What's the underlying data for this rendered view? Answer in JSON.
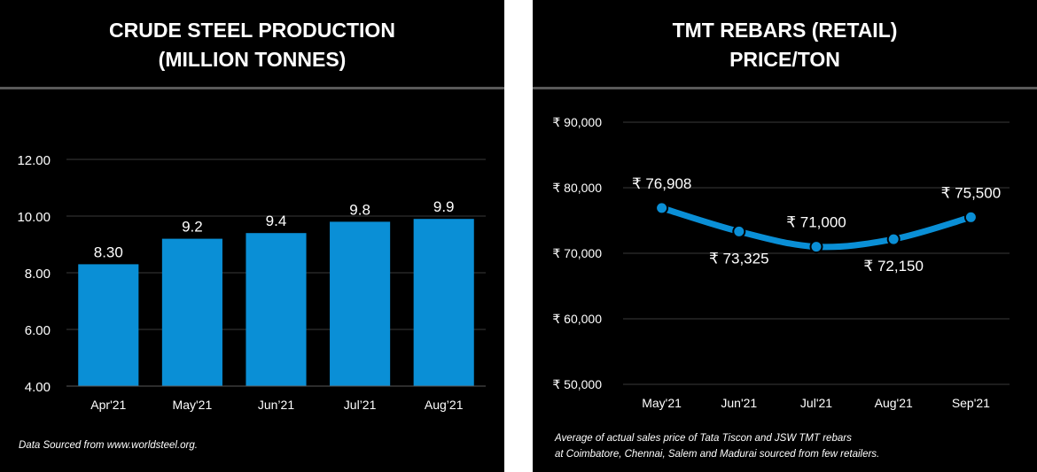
{
  "left_panel": {
    "title_line1": "CRUDE STEEL PRODUCTION",
    "title_line2": "(MILLION TONNES)",
    "footnote": "Data Sourced from www.worldsteel.org."
  },
  "right_panel": {
    "title_line1": "TMT REBARS (RETAIL)",
    "title_line2": "PRICE/TON",
    "footnote_line1": "Average of actual sales price of Tata Tiscon and JSW TMT rebars",
    "footnote_line2": "at Coimbatore, Chennai, Salem and Madurai sourced from few retailers."
  },
  "colors": {
    "accent": "#0a8fd6",
    "background": "#000000",
    "grid": "#3a3a3a",
    "text": "#ffffff"
  },
  "chart_data": [
    {
      "type": "bar",
      "categories": [
        "Apr'21",
        "May'21",
        "Jun’21",
        "Jul’21",
        "Aug’21"
      ],
      "values": [
        8.3,
        9.2,
        9.4,
        9.8,
        9.9
      ],
      "data_labels": [
        "8.30",
        "9.2",
        "9.4",
        "9.8",
        "9.9"
      ],
      "ylim": [
        4,
        12
      ],
      "yticks": [
        4,
        6,
        8,
        10,
        12
      ],
      "ytick_labels": [
        "4.00",
        "6.00",
        "8.00",
        "10.00",
        "12.00"
      ],
      "grid": true,
      "legend": "none"
    },
    {
      "type": "line",
      "categories": [
        "May'21",
        "Jun'21",
        "Jul'21",
        "Aug'21",
        "Sep'21"
      ],
      "values": [
        76908,
        73325,
        71000,
        72150,
        75500
      ],
      "data_labels": [
        "₹ 76,908",
        "₹ 73,325",
        "₹ 71,000",
        "₹ 72,150",
        "₹ 75,500"
      ],
      "label_positions": [
        "above",
        "below",
        "above",
        "below",
        "above"
      ],
      "ylim": [
        50000,
        90000
      ],
      "yticks": [
        50000,
        60000,
        70000,
        80000,
        90000
      ],
      "ytick_labels": [
        "₹ 50,000",
        "₹ 60,000",
        "₹ 70,000",
        "₹ 80,000",
        "₹ 90,000"
      ],
      "smooth": true,
      "grid": true,
      "legend": "none"
    }
  ]
}
